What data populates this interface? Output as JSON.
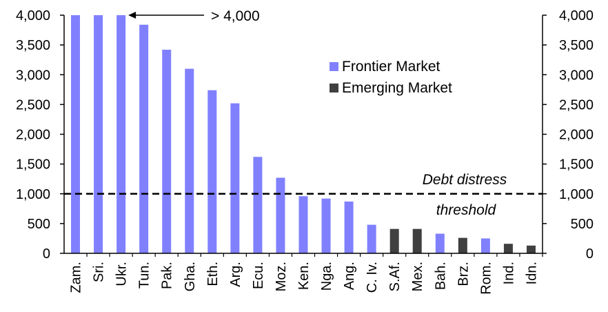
{
  "chart_data": {
    "type": "bar",
    "categories": [
      "Zam.",
      "Sri.",
      "Ukr.",
      "Tun.",
      "Pak.",
      "Gha.",
      "Eth.",
      "Arg.",
      "Ecu.",
      "Moz.",
      "Ken.",
      "Nga.",
      "Ang.",
      "C. Iv.",
      "S.Af.",
      "Mex.",
      "Bah.",
      "Brz.",
      "Rom.",
      "Ind.",
      "Idn."
    ],
    "values": [
      4000,
      4000,
      4000,
      3840,
      3420,
      3100,
      2740,
      2520,
      1620,
      1270,
      960,
      920,
      870,
      480,
      410,
      410,
      330,
      260,
      250,
      160,
      130
    ],
    "groups": [
      "Frontier Market",
      "Frontier Market",
      "Frontier Market",
      "Frontier Market",
      "Frontier Market",
      "Frontier Market",
      "Frontier Market",
      "Frontier Market",
      "Frontier Market",
      "Frontier Market",
      "Frontier Market",
      "Frontier Market",
      "Frontier Market",
      "Frontier Market",
      "Emerging Market",
      "Emerging Market",
      "Frontier Market",
      "Emerging Market",
      "Frontier Market",
      "Emerging Market",
      "Emerging Market"
    ],
    "legend": [
      {
        "name": "Frontier Market",
        "color": "#8080ff"
      },
      {
        "name": "Emerging Market",
        "color": "#404040"
      }
    ],
    "legend_position": "top-right",
    "ylim": [
      0,
      4000
    ],
    "yticks": [
      0,
      500,
      1000,
      1500,
      2000,
      2500,
      3000,
      3500,
      4000
    ],
    "ytick_labels": [
      "0",
      "500",
      "1,000",
      "1,500",
      "2,000",
      "2,500",
      "3,000",
      "3,500",
      "4,000"
    ],
    "secondary_yticks": [
      "0",
      "500",
      "1,000",
      "1,500",
      "2,000",
      "2,500",
      "3,000",
      "3,500",
      "4,000"
    ],
    "threshold": {
      "value": 1000,
      "label_top": "Debt distress",
      "label_bottom": "threshold"
    },
    "annotation": {
      "text": "> 4,000",
      "arrow_to_category": "Ukr."
    },
    "grid": false
  }
}
